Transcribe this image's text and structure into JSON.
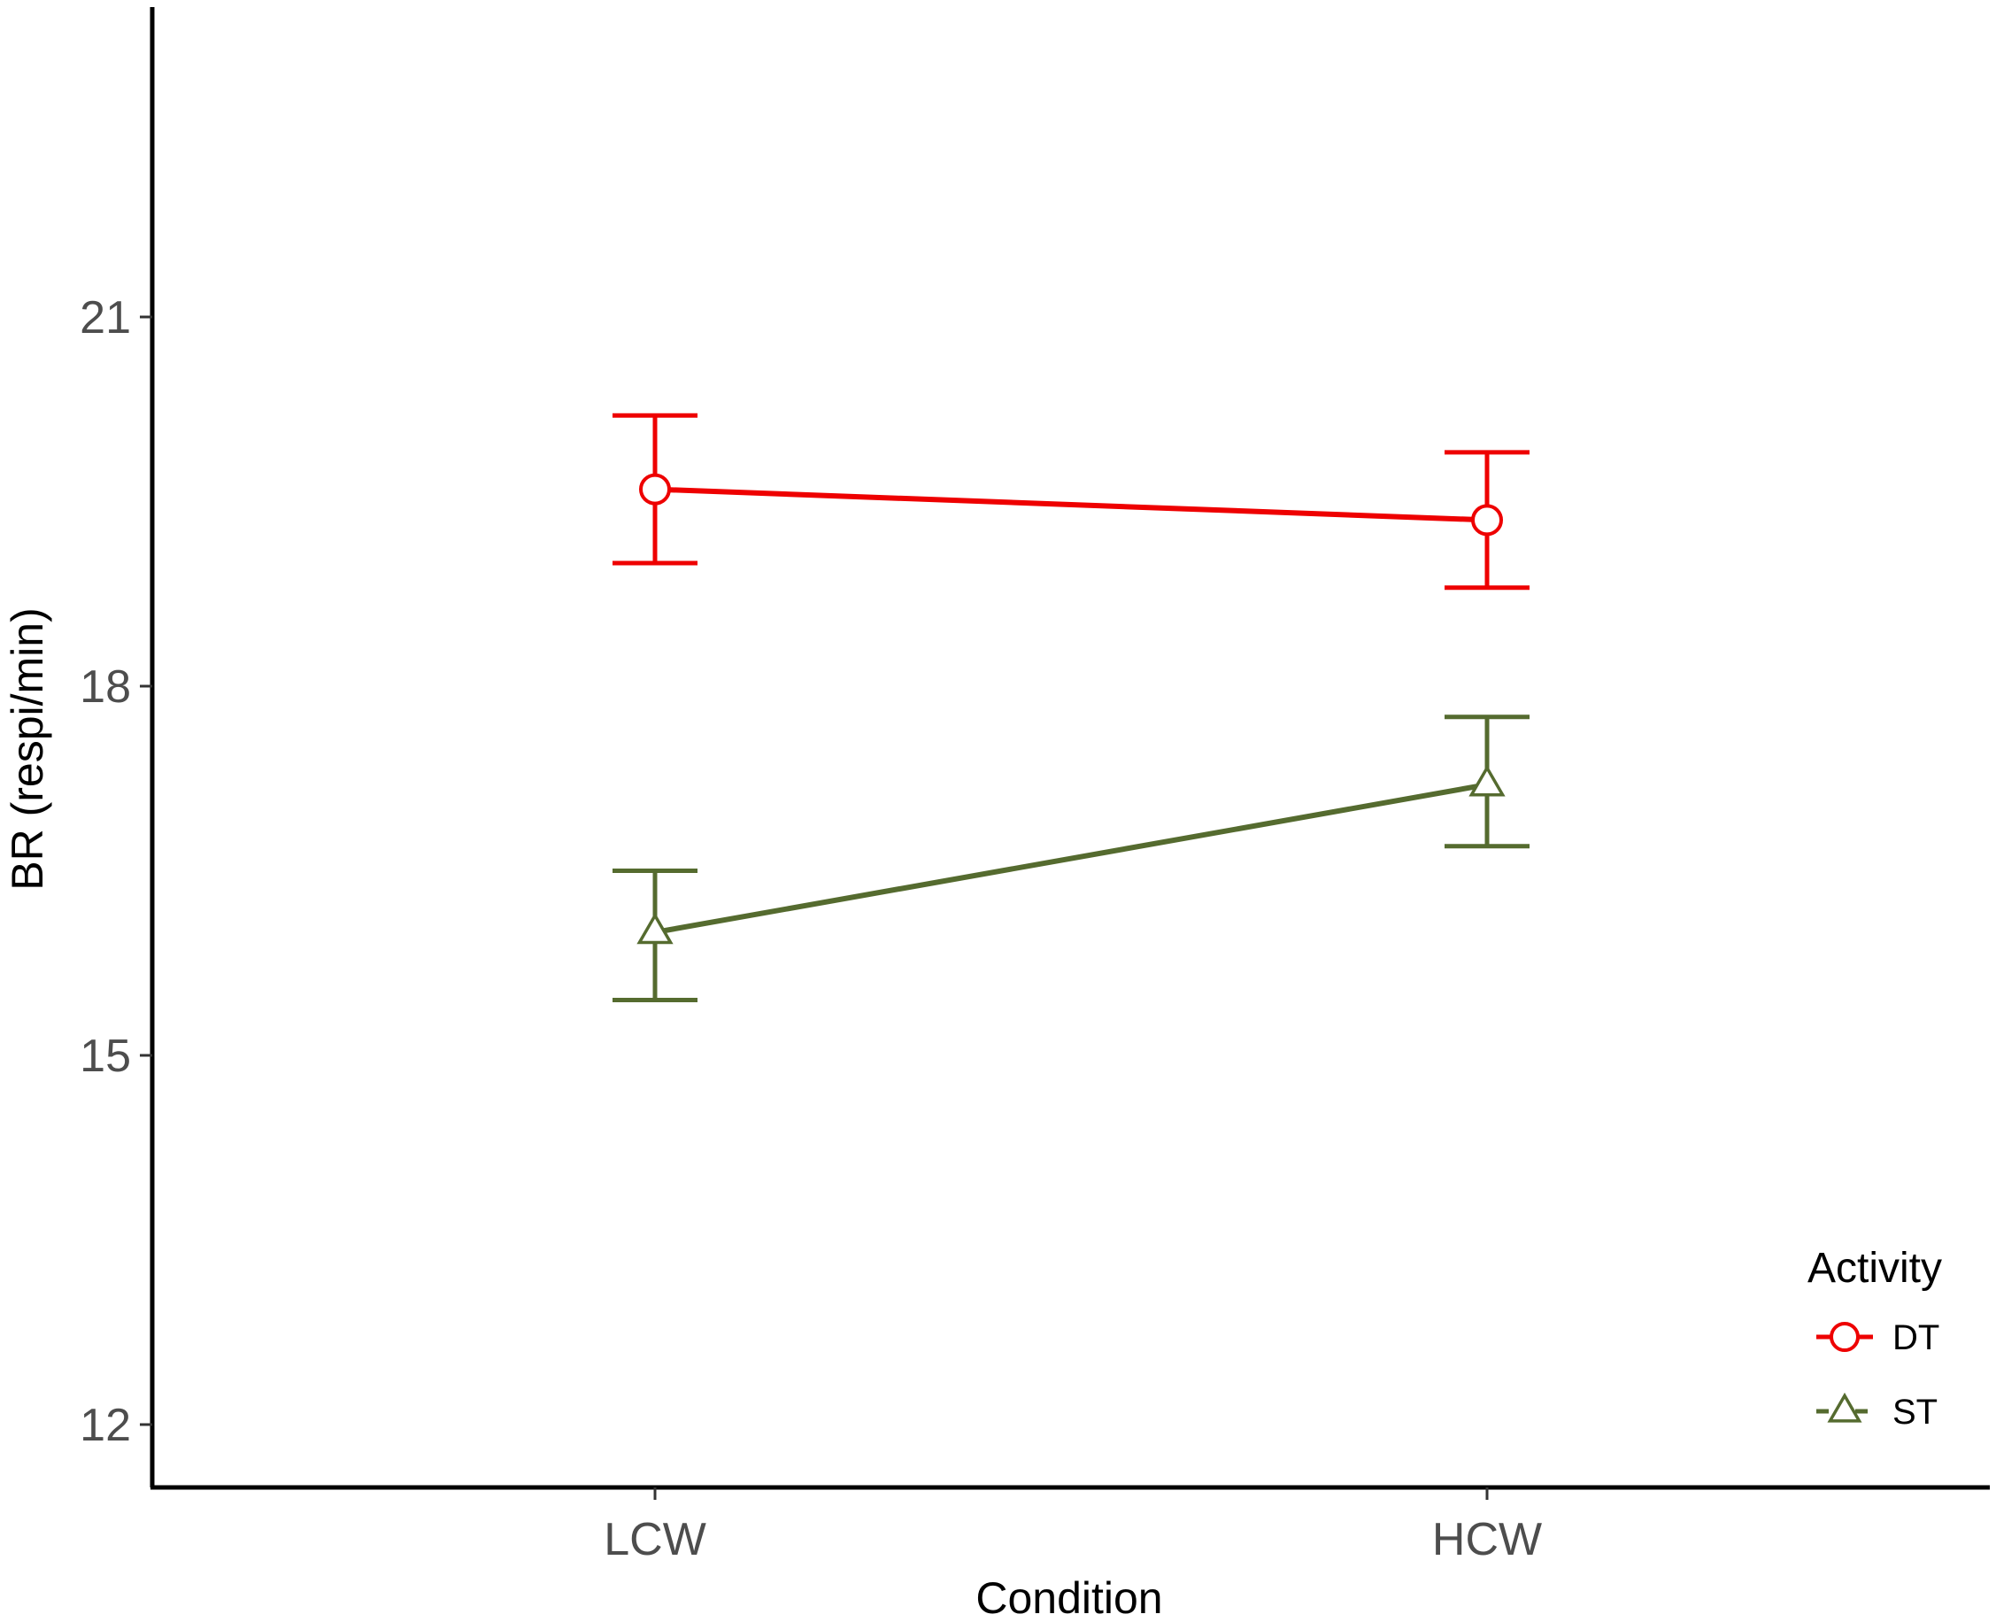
{
  "chart_data": {
    "type": "line",
    "title": "",
    "xlabel": "Condition",
    "ylabel": "BR (respi/min)",
    "categories": [
      "LCW",
      "HCW"
    ],
    "ylim": [
      10.9,
      23.7
    ],
    "yticks": [
      12,
      15,
      18,
      21
    ],
    "grid": false,
    "legend": {
      "title": "Activity",
      "placement": "right-bottom"
    },
    "series": [
      {
        "name": "DT",
        "color": "#ee0000",
        "marker": "open-circle",
        "values": [
          19.6,
          19.35
        ],
        "error_low": [
          19.0,
          18.8
        ],
        "error_high": [
          20.2,
          19.9
        ]
      },
      {
        "name": "ST",
        "color": "#556b2f",
        "marker": "open-triangle",
        "values": [
          16.0,
          17.2
        ],
        "error_low": [
          15.45,
          16.7
        ],
        "error_high": [
          16.5,
          17.75
        ]
      }
    ]
  }
}
